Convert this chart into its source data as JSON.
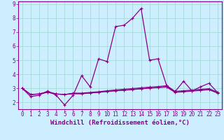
{
  "xlabel": "Windchill (Refroidissement éolien,°C)",
  "background_color": "#cceeff",
  "grid_color": "#aadddd",
  "line_color": "#880088",
  "xlim": [
    -0.5,
    23.5
  ],
  "ylim": [
    1.5,
    9.2
  ],
  "xticks": [
    0,
    1,
    2,
    3,
    4,
    5,
    6,
    7,
    8,
    9,
    10,
    11,
    12,
    13,
    14,
    15,
    16,
    17,
    18,
    19,
    20,
    21,
    22,
    23
  ],
  "yticks": [
    2,
    3,
    4,
    5,
    6,
    7,
    8,
    9
  ],
  "series": [
    [
      3.0,
      2.4,
      2.5,
      2.8,
      2.5,
      1.8,
      2.5,
      3.9,
      3.1,
      5.1,
      4.9,
      7.4,
      7.5,
      8.0,
      8.7,
      5.0,
      5.1,
      3.2,
      2.75,
      3.5,
      2.8,
      3.1,
      3.35,
      2.7
    ],
    [
      3.0,
      2.55,
      2.6,
      2.75,
      2.6,
      2.55,
      2.65,
      2.65,
      2.7,
      2.75,
      2.82,
      2.88,
      2.93,
      2.98,
      3.03,
      3.08,
      3.12,
      3.18,
      2.78,
      2.82,
      2.87,
      2.92,
      2.97,
      2.72
    ],
    [
      3.0,
      2.55,
      2.58,
      2.72,
      2.58,
      2.55,
      2.62,
      2.62,
      2.67,
      2.72,
      2.78,
      2.83,
      2.87,
      2.92,
      2.97,
      3.02,
      3.06,
      3.12,
      2.73,
      2.77,
      2.82,
      2.87,
      2.92,
      2.67
    ],
    [
      3.0,
      2.55,
      2.58,
      2.7,
      2.58,
      2.55,
      2.6,
      2.6,
      2.65,
      2.7,
      2.76,
      2.81,
      2.85,
      2.9,
      2.95,
      3.0,
      3.04,
      3.08,
      2.7,
      2.74,
      2.79,
      2.84,
      2.89,
      2.65
    ]
  ],
  "xlabel_fontsize": 6.5,
  "tick_fontsize": 5.5
}
